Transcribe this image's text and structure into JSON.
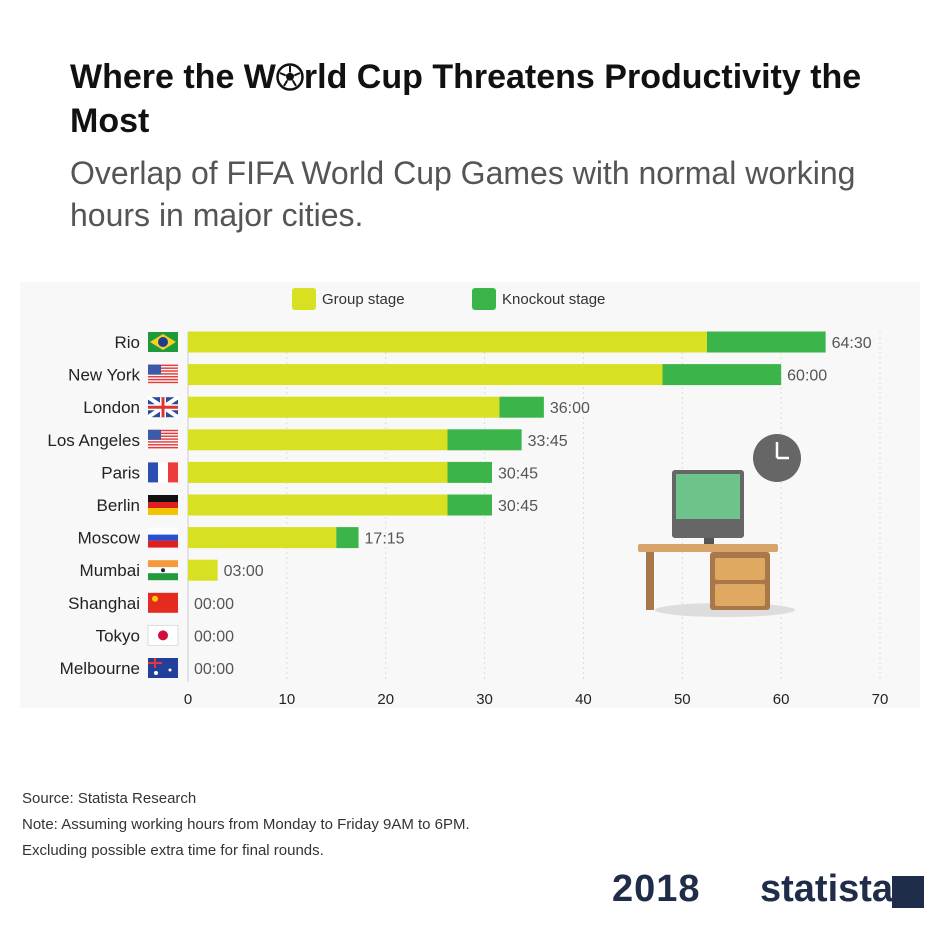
{
  "title_part1": "Where the W",
  "title_part2": "rld Cup Threatens Productivity the Most",
  "subtitle": "Overlap of FIFA World Cup Games with normal working hours in major cities.",
  "source": "Source: Statista Research",
  "note1": "Note: Assuming working hours from Monday to Friday 9AM to 6PM.",
  "note2": "Excluding possible extra time for final rounds.",
  "logo_2018": "2018",
  "logo_statista": "statista",
  "colors": {
    "group": "#d7e021",
    "knockout": "#3bb54a"
  },
  "chart_data": {
    "type": "bar",
    "orientation": "horizontal",
    "stacked": true,
    "categories": [
      "Rio",
      "New York",
      "London",
      "Los Angeles",
      "Paris",
      "Berlin",
      "Moscow",
      "Mumbai",
      "Shanghai",
      "Tokyo",
      "Melbourne"
    ],
    "flags": [
      "brazil",
      "usa",
      "uk",
      "usa",
      "france",
      "germany",
      "russia",
      "india",
      "china",
      "japan",
      "australia"
    ],
    "series": [
      {
        "name": "Group stage",
        "values": [
          52.5,
          48,
          31.5,
          26.25,
          26.25,
          26.25,
          15,
          3,
          0,
          0,
          0
        ]
      },
      {
        "name": "Knockout stage",
        "values": [
          12,
          12,
          4.5,
          7.5,
          4.5,
          4.5,
          2.25,
          0,
          0,
          0,
          0
        ]
      }
    ],
    "data_labels": [
      "64:30",
      "60:00",
      "36:00",
      "33:45",
      "30:45",
      "30:45",
      "17:15",
      "03:00",
      "00:00",
      "00:00",
      "00:00"
    ],
    "xlim": [
      0,
      70
    ],
    "xticks": [
      0,
      10,
      20,
      30,
      40,
      50,
      60,
      70
    ],
    "grid": true,
    "legend_position": "top"
  }
}
